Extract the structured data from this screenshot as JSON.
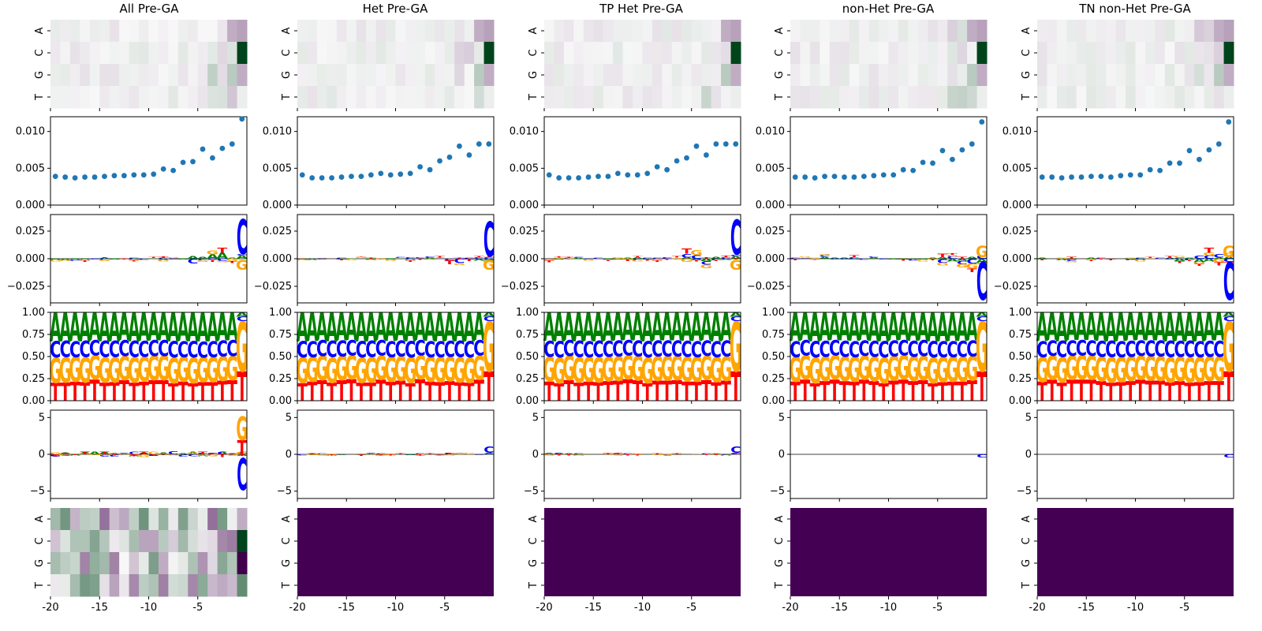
{
  "figure": {
    "columns": [
      "All Pre-GA",
      "Het Pre-GA",
      "TP Het Pre-GA",
      "non-Het Pre-GA",
      "TN non-Het Pre-GA"
    ]
  },
  "chart_data": {
    "type": "heatmap",
    "positions": [
      -20,
      -19,
      -18,
      -17,
      -16,
      -15,
      -14,
      -13,
      -12,
      -11,
      -10,
      -9,
      -8,
      -7,
      -6,
      -5,
      -4,
      -3,
      -2,
      -1
    ],
    "x_ticks": [
      "-20",
      "-15",
      "-10",
      "-5"
    ],
    "bases": [
      "A",
      "C",
      "G",
      "T"
    ],
    "colors": {
      "A": "#008000",
      "C": "#0000ff",
      "G": "#ffa500",
      "T": "#ff0000"
    },
    "rows": {
      "heatmap_top": {
        "type": "heatmap",
        "cmap": "PRGn"
      },
      "scatter": {
        "type": "scatter",
        "yticks": [
          "0.000",
          "0.005",
          "0.010"
        ],
        "ylim": [
          0,
          0.012
        ],
        "color": "#1f77b4",
        "series": [
          [
            0.0039,
            0.0038,
            0.0037,
            0.0038,
            0.0038,
            0.0039,
            0.004,
            0.004,
            0.0041,
            0.0041,
            0.0042,
            0.0049,
            0.0047,
            0.0058,
            0.0059,
            0.0076,
            0.0064,
            0.0077,
            0.0083,
            0.0117
          ],
          [
            0.0041,
            0.0037,
            0.0037,
            0.0037,
            0.0038,
            0.0039,
            0.0039,
            0.0041,
            0.0043,
            0.0041,
            0.0042,
            0.0043,
            0.0052,
            0.0048,
            0.006,
            0.0065,
            0.008,
            0.0068,
            0.0083,
            0.0083
          ],
          [
            0.0041,
            0.0037,
            0.0037,
            0.0037,
            0.0038,
            0.0039,
            0.0039,
            0.0043,
            0.0041,
            0.0041,
            0.0043,
            0.0052,
            0.0048,
            0.006,
            0.0064,
            0.008,
            0.0068,
            0.0083,
            0.0083,
            0.0083
          ],
          [
            0.0038,
            0.0038,
            0.0037,
            0.0039,
            0.0039,
            0.0038,
            0.0038,
            0.0039,
            0.004,
            0.0041,
            0.0041,
            0.0048,
            0.0047,
            0.0058,
            0.0057,
            0.0074,
            0.0062,
            0.0075,
            0.0083,
            0.0113
          ],
          [
            0.0038,
            0.0038,
            0.0037,
            0.0038,
            0.0038,
            0.0039,
            0.0039,
            0.0038,
            0.004,
            0.0041,
            0.0041,
            0.0048,
            0.0047,
            0.0057,
            0.0057,
            0.0074,
            0.0062,
            0.0075,
            0.0083,
            0.0113
          ]
        ]
      },
      "diff_logo": {
        "type": "sequence-logo",
        "yticks": [
          "−0.025",
          "0.000",
          "0.025"
        ],
        "ylim": [
          -0.04,
          0.04
        ]
      },
      "prob_logo": {
        "type": "sequence-logo",
        "yticks": [
          "0.00",
          "0.25",
          "0.50",
          "0.75",
          "1.00"
        ],
        "ylim": [
          0,
          1
        ],
        "composition": {
          "T": 0.22,
          "G": 0.28,
          "C": 0.18,
          "A": 0.32
        }
      },
      "score_logo": {
        "type": "sequence-logo",
        "yticks": [
          "−5",
          "0",
          "5"
        ],
        "ylim": [
          -6,
          6
        ]
      },
      "heatmap_bottom": {
        "type": "heatmap",
        "cmap": "PRGn",
        "uniform_color": "#440154"
      }
    }
  }
}
